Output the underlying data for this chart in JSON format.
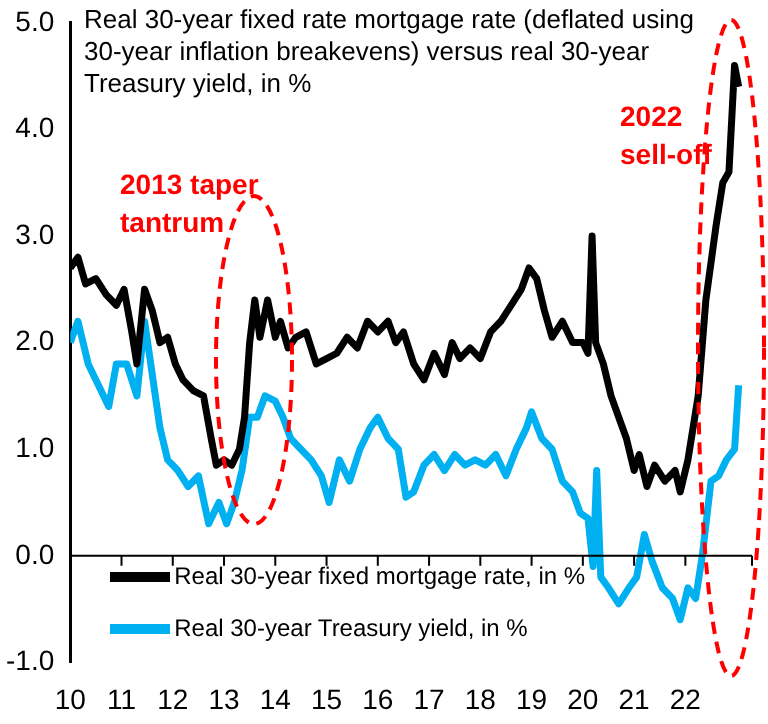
{
  "chart_data": {
    "type": "line",
    "title": "Real 30-year fixed rate mortgage rate (deflated using 30-year inflation breakevens) versus real 30-year Treasury yield, in %",
    "series": [
      {
        "name": "Real 30-year fixed mortgage rate, in %",
        "color": "#000000",
        "x": [
          2010.0,
          2010.15,
          2010.3,
          2010.5,
          2010.7,
          2010.9,
          2011.05,
          2011.2,
          2011.3,
          2011.45,
          2011.6,
          2011.75,
          2011.9,
          2012.05,
          2012.2,
          2012.4,
          2012.6,
          2012.75,
          2012.85,
          2013.0,
          2013.15,
          2013.3,
          2013.4,
          2013.5,
          2013.6,
          2013.7,
          2013.85,
          2014.0,
          2014.1,
          2014.25,
          2014.4,
          2014.6,
          2014.8,
          2015.0,
          2015.2,
          2015.4,
          2015.6,
          2015.8,
          2016.0,
          2016.2,
          2016.35,
          2016.5,
          2016.7,
          2016.9,
          2017.1,
          2017.3,
          2017.45,
          2017.6,
          2017.8,
          2018.0,
          2018.2,
          2018.4,
          2018.6,
          2018.8,
          2018.95,
          2019.1,
          2019.25,
          2019.4,
          2019.6,
          2019.8,
          2020.0,
          2020.1,
          2020.18,
          2020.25,
          2020.4,
          2020.55,
          2020.7,
          2020.85,
          2021.0,
          2021.1,
          2021.25,
          2021.4,
          2021.6,
          2021.8,
          2021.9,
          2022.05,
          2022.25,
          2022.4,
          2022.6,
          2022.73,
          2022.85,
          2022.96,
          2023.04
        ],
        "values": [
          2.7,
          2.8,
          2.55,
          2.6,
          2.45,
          2.35,
          2.5,
          2.1,
          1.8,
          2.5,
          2.3,
          2.0,
          2.05,
          1.8,
          1.65,
          1.55,
          1.5,
          1.1,
          0.85,
          0.9,
          0.85,
          1.0,
          1.3,
          2.0,
          2.4,
          2.05,
          2.4,
          2.05,
          2.2,
          1.95,
          2.05,
          2.1,
          1.8,
          1.85,
          1.9,
          2.05,
          1.95,
          2.2,
          2.1,
          2.2,
          2.0,
          2.1,
          1.8,
          1.65,
          1.9,
          1.7,
          2.0,
          1.85,
          1.95,
          1.85,
          2.1,
          2.2,
          2.35,
          2.5,
          2.7,
          2.6,
          2.3,
          2.05,
          2.2,
          2.0,
          2.0,
          1.9,
          3.0,
          2.0,
          1.8,
          1.5,
          1.3,
          1.1,
          0.8,
          0.95,
          0.65,
          0.85,
          0.7,
          0.8,
          0.6,
          0.9,
          1.5,
          2.4,
          3.1,
          3.5,
          3.6,
          4.6,
          4.4
        ]
      },
      {
        "name": "Real 30-year Treasury yield, in %",
        "color": "#00b0f0",
        "x": [
          2010.0,
          2010.15,
          2010.35,
          2010.55,
          2010.75,
          2010.9,
          2011.1,
          2011.3,
          2011.45,
          2011.6,
          2011.75,
          2011.9,
          2012.1,
          2012.3,
          2012.5,
          2012.7,
          2012.9,
          2013.05,
          2013.2,
          2013.35,
          2013.5,
          2013.65,
          2013.8,
          2014.0,
          2014.15,
          2014.3,
          2014.5,
          2014.7,
          2014.9,
          2015.05,
          2015.25,
          2015.45,
          2015.65,
          2015.85,
          2016.0,
          2016.2,
          2016.4,
          2016.55,
          2016.7,
          2016.9,
          2017.1,
          2017.3,
          2017.5,
          2017.7,
          2017.9,
          2018.1,
          2018.3,
          2018.5,
          2018.7,
          2018.9,
          2019.0,
          2019.2,
          2019.4,
          2019.6,
          2019.8,
          2019.95,
          2020.1,
          2020.2,
          2020.27,
          2020.35,
          2020.5,
          2020.7,
          2020.9,
          2021.05,
          2021.2,
          2021.35,
          2021.55,
          2021.75,
          2021.9,
          2022.05,
          2022.2,
          2022.33,
          2022.5,
          2022.65,
          2022.8,
          2022.96,
          2023.04
        ],
        "values": [
          2.0,
          2.2,
          1.8,
          1.6,
          1.4,
          1.8,
          1.8,
          1.5,
          2.2,
          1.7,
          1.2,
          0.9,
          0.8,
          0.65,
          0.75,
          0.3,
          0.5,
          0.3,
          0.5,
          0.8,
          1.3,
          1.3,
          1.5,
          1.45,
          1.3,
          1.1,
          1.0,
          0.9,
          0.75,
          0.5,
          0.9,
          0.7,
          1.0,
          1.2,
          1.3,
          1.1,
          1.0,
          0.55,
          0.6,
          0.85,
          0.95,
          0.8,
          0.95,
          0.85,
          0.9,
          0.85,
          0.95,
          0.75,
          1.0,
          1.2,
          1.35,
          1.1,
          1.0,
          0.7,
          0.6,
          0.4,
          0.35,
          -0.1,
          0.8,
          -0.2,
          -0.3,
          -0.45,
          -0.3,
          -0.2,
          0.2,
          -0.05,
          -0.3,
          -0.4,
          -0.6,
          -0.3,
          -0.4,
          0.0,
          0.7,
          0.75,
          0.9,
          1.0,
          1.6
        ]
      }
    ],
    "xlim": [
      2010,
      2023.3
    ],
    "xticks": [
      {
        "value": 2010,
        "label": "10"
      },
      {
        "value": 2011,
        "label": "11"
      },
      {
        "value": 2012,
        "label": "12"
      },
      {
        "value": 2013,
        "label": "13"
      },
      {
        "value": 2014,
        "label": "14"
      },
      {
        "value": 2015,
        "label": "15"
      },
      {
        "value": 2016,
        "label": "16"
      },
      {
        "value": 2017,
        "label": "17"
      },
      {
        "value": 2018,
        "label": "18"
      },
      {
        "value": 2019,
        "label": "19"
      },
      {
        "value": 2020,
        "label": "20"
      },
      {
        "value": 2021,
        "label": "21"
      },
      {
        "value": 2022,
        "label": "22"
      }
    ],
    "ylim": [
      -1,
      5
    ],
    "yticks": [
      {
        "value": -1,
        "label": "-1.0"
      },
      {
        "value": 0,
        "label": "0.0"
      },
      {
        "value": 1,
        "label": "1.0"
      },
      {
        "value": 2,
        "label": "2.0"
      },
      {
        "value": 3,
        "label": "3.0"
      },
      {
        "value": 4,
        "label": "4.0"
      },
      {
        "value": 5,
        "label": "5.0"
      }
    ],
    "annotations": [
      "2013 taper tantrum",
      "2022 sell-off"
    ],
    "ref_lines": [
      {
        "axis": "y",
        "value": 0,
        "color": "#000000"
      }
    ],
    "legend": "bottom left",
    "grid": false,
    "marker": "none",
    "line_style": "solid"
  }
}
